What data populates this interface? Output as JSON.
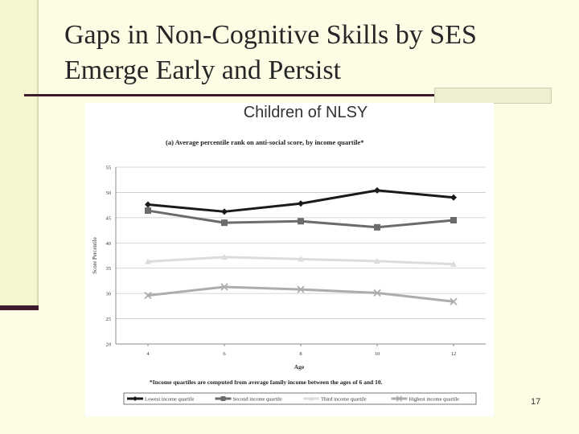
{
  "slide": {
    "title_line1": "Gaps in Non-Cognitive Skills by SES",
    "title_line2": "Emerge Early and Persist",
    "page_number": "17"
  },
  "chart_data": {
    "type": "line",
    "heading": "Children of NLSY",
    "title": "(a) Average percentile rank on anti-social score, by income quartile*",
    "xlabel": "Age",
    "ylabel": "Score Percentile",
    "footnote": "*Income quartiles are computed from average family income between the ages of 6 and 10.",
    "x": [
      4,
      6,
      8,
      10,
      12
    ],
    "ylim": [
      20,
      55
    ],
    "yticks": [
      20,
      25,
      30,
      35,
      40,
      45,
      50,
      55
    ],
    "grid": true,
    "legend_position": "bottom",
    "series": [
      {
        "name": "Lowest income quartile",
        "values": [
          47.6,
          46.2,
          47.8,
          50.4,
          49.0
        ],
        "color": "#1a1a1a",
        "marker": "diamond"
      },
      {
        "name": "Second income quartile",
        "values": [
          46.4,
          44.0,
          44.3,
          43.1,
          44.5
        ],
        "color": "#6b6b6b",
        "marker": "square"
      },
      {
        "name": "Third income quartile",
        "values": [
          36.3,
          37.2,
          36.8,
          36.4,
          35.8
        ],
        "color": "#dcdcdc",
        "marker": "triangle"
      },
      {
        "name": "Highest income quartile",
        "values": [
          29.6,
          31.3,
          30.8,
          30.1,
          28.4
        ],
        "color": "#adadad",
        "marker": "x"
      }
    ]
  }
}
